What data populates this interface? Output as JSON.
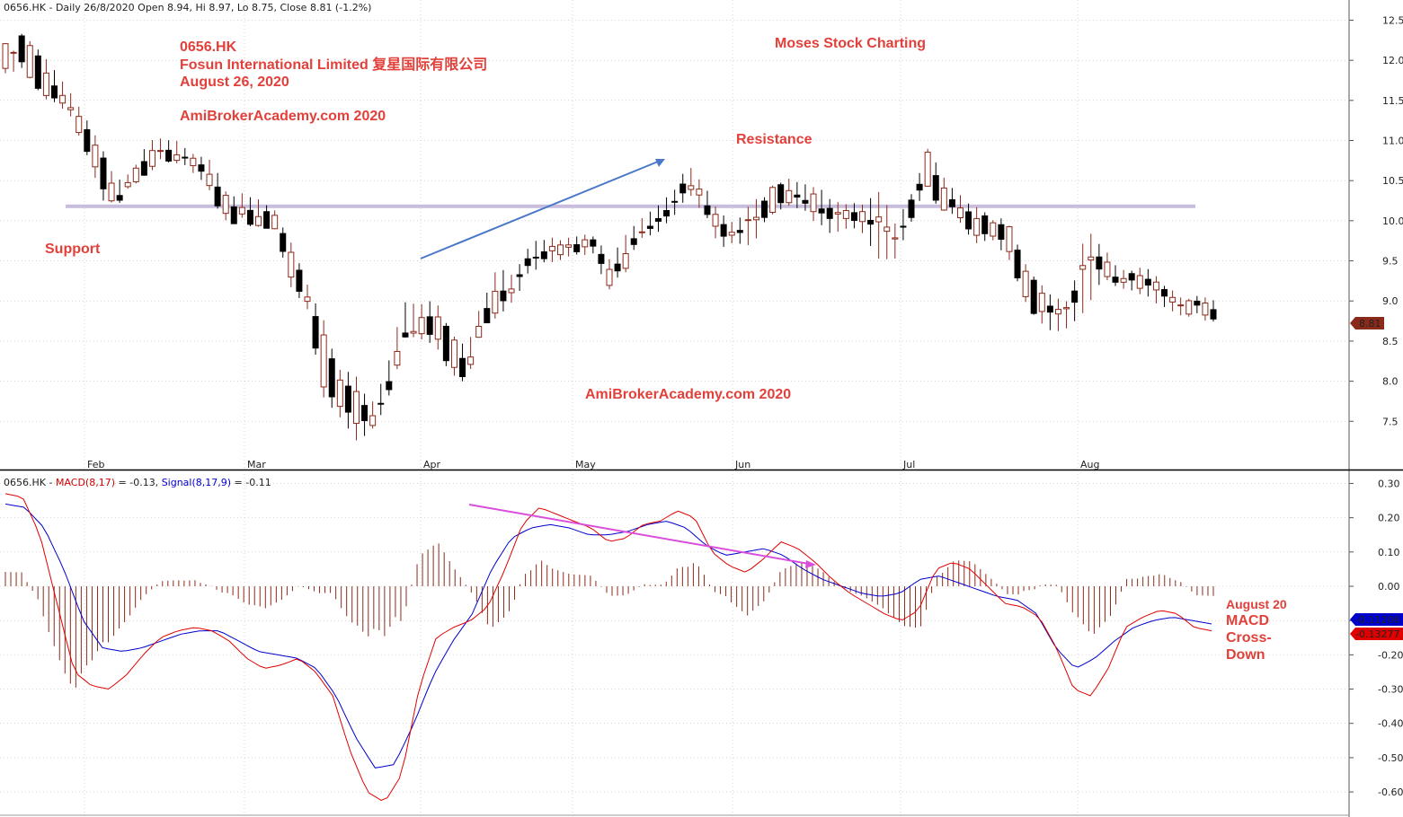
{
  "header": {
    "price": "0656.HK - Daily 26/8/2020 Open 8.94, Hi 8.97, Lo 8.75, Close 8.81 (-1.2%)",
    "macd_symbol": "0656.HK - ",
    "macd_label": "MACD(8,17)",
    "macd_value": " = -0.13, ",
    "signal_label": "Signal(8,17,9)",
    "signal_value": " = -0.11"
  },
  "annotations": {
    "ticker": "0656.HK",
    "company": "Fosun International Limited 复星国际有限公司",
    "date": "August 26, 2020",
    "watermark1": "AmiBrokerAcademy.com 2020",
    "brand": "Moses Stock Charting",
    "resistance": "Resistance",
    "support": "Support",
    "watermark2": "AmiBrokerAcademy.com  2020",
    "macd_date": "August 20",
    "macd_line1": "MACD",
    "macd_line2": "Cross-",
    "macd_line3": "Down"
  },
  "badges": {
    "price": "8.81",
    "signal": "-0.11206",
    "macd": "-0.13277"
  },
  "colors": {
    "up_candle": "#8b2a1a",
    "down_candle": "#000000",
    "macd": "#e00000",
    "signal": "#0000cc",
    "histogram": "#8b2a1a",
    "level_line": "#c8bedc",
    "annotation": "#e2403a",
    "arrow": "#4a78c8",
    "divergence": "#d94fdc"
  },
  "chart_data": [
    {
      "type": "candlestick",
      "ylim": [
        7.1,
        12.55
      ],
      "y_ticks": [
        "12.5",
        "12.0",
        "11.5",
        "11.0",
        "10.5",
        "10.0",
        "9.5",
        "9.0",
        "8.5",
        "8.0",
        "7.5"
      ],
      "x_month_labels": [
        "Feb",
        "Mar",
        "Apr",
        "May",
        "Jun",
        "Jul",
        "Aug"
      ],
      "level": 10.18,
      "ohlc_anchors": [
        [
          11.9,
          11.9,
          12.2,
          11.85
        ],
        [
          12.3,
          12.32,
          12.0,
          11.95
        ],
        [
          12.05,
          12.12,
          11.7,
          11.72
        ],
        [
          11.75,
          11.85,
          11.55,
          11.5
        ],
        [
          11.45,
          11.6,
          11.4,
          11.35
        ],
        [
          11.2,
          11.3,
          10.95,
          11.0
        ],
        [
          10.85,
          10.9,
          10.45,
          10.3
        ],
        [
          10.35,
          10.45,
          10.2,
          10.2
        ],
        [
          10.45,
          10.6,
          10.55,
          10.6
        ],
        [
          10.65,
          10.95,
          10.85,
          10.8
        ],
        [
          10.88,
          11.0,
          10.82,
          10.8
        ],
        [
          10.85,
          10.95,
          10.75,
          10.75
        ],
        [
          10.75,
          10.8,
          10.68,
          10.62
        ],
        [
          10.6,
          10.7,
          10.35,
          10.35
        ],
        [
          10.25,
          10.3,
          10.0,
          10.0
        ],
        [
          10.15,
          10.3,
          10.05,
          10.05
        ],
        [
          10.1,
          10.25,
          9.95,
          10.0
        ],
        [
          10.05,
          10.1,
          9.95,
          9.9
        ],
        [
          9.6,
          9.7,
          9.25,
          9.2
        ],
        [
          9.1,
          9.2,
          8.95,
          8.9
        ],
        [
          8.6,
          8.75,
          7.95,
          7.85
        ],
        [
          8.0,
          8.1,
          7.7,
          7.6
        ],
        [
          7.9,
          8.05,
          7.45,
          7.3
        ],
        [
          7.55,
          7.65,
          7.45,
          7.4
        ],
        [
          7.8,
          8.1,
          7.9,
          7.75
        ],
        [
          8.5,
          8.95,
          8.65,
          8.55
        ],
        [
          8.7,
          8.95,
          8.6,
          8.55
        ],
        [
          8.9,
          9.0,
          8.55,
          8.5
        ],
        [
          8.55,
          8.6,
          8.2,
          8.1
        ],
        [
          8.2,
          8.4,
          8.05,
          8.0
        ],
        [
          8.65,
          8.95,
          8.85,
          8.7
        ],
        [
          8.95,
          9.4,
          9.15,
          8.8
        ],
        [
          9.1,
          9.3,
          9.15,
          9.05
        ],
        [
          9.55,
          9.7,
          9.5,
          9.4
        ],
        [
          9.65,
          9.75,
          9.55,
          9.5
        ],
        [
          9.6,
          9.75,
          9.7,
          9.55
        ],
        [
          9.7,
          9.8,
          9.6,
          9.6
        ],
        [
          9.75,
          9.8,
          9.7,
          9.6
        ],
        [
          9.2,
          9.5,
          9.35,
          9.15
        ],
        [
          9.45,
          9.8,
          9.6,
          9.45
        ],
        [
          9.85,
          10.0,
          9.9,
          9.8
        ],
        [
          10.0,
          10.15,
          9.95,
          9.85
        ],
        [
          10.2,
          10.35,
          10.25,
          10.05
        ],
        [
          10.45,
          10.65,
          10.55,
          10.4
        ],
        [
          10.3,
          10.4,
          10.15,
          10.1
        ],
        [
          9.95,
          10.05,
          9.85,
          9.7
        ],
        [
          9.9,
          9.95,
          9.85,
          9.75
        ],
        [
          10.05,
          10.25,
          10.0,
          9.7
        ],
        [
          10.1,
          10.3,
          10.35,
          10.1
        ],
        [
          10.2,
          10.5,
          10.45,
          10.2
        ],
        [
          10.3,
          10.45,
          10.3,
          10.2
        ],
        [
          10.3,
          10.4,
          10.05,
          10.0
        ],
        [
          10.0,
          10.25,
          10.2,
          9.85
        ],
        [
          10.15,
          10.2,
          10.0,
          9.95
        ],
        [
          10.05,
          10.15,
          9.95,
          9.85
        ],
        [
          10.0,
          10.35,
          10.0,
          9.55
        ],
        [
          9.8,
          9.95,
          9.75,
          9.55
        ],
        [
          10.1,
          10.3,
          10.2,
          10.0
        ],
        [
          10.85,
          10.85,
          10.45,
          10.55
        ],
        [
          10.4,
          10.55,
          10.2,
          10.2
        ],
        [
          10.2,
          10.3,
          10.05,
          10.0
        ],
        [
          10.1,
          10.15,
          9.8,
          9.75
        ],
        [
          9.95,
          10.0,
          9.9,
          9.8
        ],
        [
          9.95,
          10.0,
          9.65,
          9.6
        ],
        [
          9.45,
          9.5,
          9.15,
          9.1
        ],
        [
          9.1,
          9.2,
          8.8,
          8.75
        ],
        [
          8.9,
          9.0,
          8.85,
          8.65
        ],
        [
          8.85,
          8.95,
          8.9,
          8.7
        ],
        [
          9.55,
          9.9,
          9.6,
          8.9
        ],
        [
          9.6,
          9.65,
          9.4,
          9.3
        ],
        [
          9.3,
          9.4,
          9.25,
          9.2
        ],
        [
          9.3,
          9.35,
          9.2,
          9.15
        ],
        [
          9.3,
          9.4,
          9.2,
          9.05
        ],
        [
          9.1,
          9.15,
          9.0,
          8.95
        ],
        [
          8.95,
          9.0,
          8.9,
          8.85
        ],
        [
          8.94,
          9.05,
          8.89,
          8.85
        ],
        [
          8.94,
          8.97,
          8.81,
          8.75
        ]
      ]
    },
    {
      "type": "line",
      "series": [
        {
          "name": "MACD(8,17)",
          "color": "#e00000"
        },
        {
          "name": "Signal(8,17,9)",
          "color": "#0000cc"
        }
      ],
      "ylim": [
        -0.66,
        0.33
      ],
      "y_ticks": [
        "0.30",
        "0.20",
        "0.10",
        "0.00",
        "-0.10",
        "-0.20",
        "-0.30",
        "-0.40",
        "-0.50",
        "-0.60"
      ],
      "macd_anchors": [
        0.27,
        0.26,
        0.15,
        -0.05,
        -0.25,
        -0.29,
        -0.3,
        -0.26,
        -0.2,
        -0.15,
        -0.13,
        -0.12,
        -0.13,
        -0.16,
        -0.21,
        -0.24,
        -0.23,
        -0.21,
        -0.25,
        -0.32,
        -0.48,
        -0.6,
        -0.63,
        -0.55,
        -0.3,
        -0.15,
        -0.12,
        -0.1,
        -0.06,
        0.05,
        0.18,
        0.23,
        0.21,
        0.19,
        0.17,
        0.13,
        0.14,
        0.18,
        0.19,
        0.22,
        0.2,
        0.1,
        0.06,
        0.04,
        0.08,
        0.13,
        0.11,
        0.07,
        0.02,
        -0.02,
        -0.05,
        -0.08,
        -0.1,
        -0.07,
        0.05,
        0.07,
        0.05,
        0.0,
        -0.05,
        -0.06,
        -0.09,
        -0.18,
        -0.3,
        -0.32,
        -0.24,
        -0.12,
        -0.09,
        -0.07,
        -0.08,
        -0.12,
        -0.13
      ],
      "signal_anchors": [
        0.24,
        0.23,
        0.17,
        0.05,
        -0.1,
        -0.18,
        -0.19,
        -0.18,
        -0.16,
        -0.14,
        -0.13,
        -0.13,
        -0.16,
        -0.19,
        -0.2,
        -0.21,
        -0.24,
        -0.32,
        -0.44,
        -0.53,
        -0.52,
        -0.4,
        -0.26,
        -0.16,
        -0.08,
        0.05,
        0.14,
        0.17,
        0.18,
        0.17,
        0.15,
        0.15,
        0.16,
        0.18,
        0.19,
        0.17,
        0.12,
        0.09,
        0.1,
        0.11,
        0.09,
        0.05,
        0.02,
        0.0,
        -0.02,
        -0.03,
        -0.02,
        0.02,
        0.03,
        0.01,
        -0.01,
        -0.03,
        -0.04,
        -0.08,
        -0.18,
        -0.24,
        -0.21,
        -0.16,
        -0.12,
        -0.1,
        -0.09,
        -0.1,
        -0.11
      ]
    }
  ]
}
